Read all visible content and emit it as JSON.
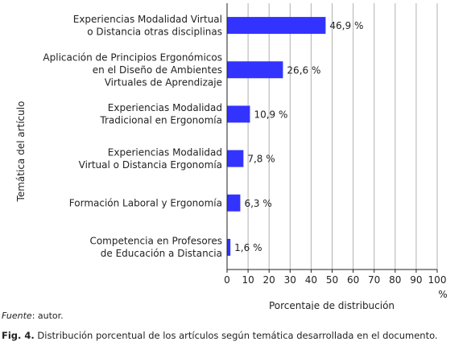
{
  "chart_data": {
    "type": "bar",
    "orientation": "horizontal",
    "categories": [
      [
        "Experiencias Modalidad Virtual",
        "o Distancia otras disciplinas"
      ],
      [
        "Aplicación de Principios Ergonómicos",
        "en el Diseño de Ambientes",
        "Virtuales de Aprendizaje"
      ],
      [
        "Experiencias Modalidad",
        "Tradicional en Ergonomía"
      ],
      [
        "Experiencias Modalidad",
        "Virtual o Distancia Ergonomía"
      ],
      [
        "Formación Laboral y Ergonomía"
      ],
      [
        "Competencia en Profesores",
        "de Educación a Distancia"
      ]
    ],
    "values": [
      46.9,
      26.6,
      10.9,
      7.8,
      6.3,
      1.6
    ],
    "data_labels": [
      "46,9 %",
      "26,6 %",
      "10,9 %",
      "7,8 %",
      "6,3 %",
      "1,6 %"
    ],
    "xlim": [
      0,
      100
    ],
    "xticks": [
      "0",
      "10",
      "20",
      "30",
      "40",
      "50",
      "60",
      "70",
      "80",
      "90",
      "100"
    ],
    "x_unit": "%",
    "xlabel": "Porcentaje de distribución",
    "ylabel": "Temática del artículo",
    "bar_color": "#3333ff",
    "grid": "vertical"
  },
  "source": {
    "label": "Fuente",
    "text": ": autor."
  },
  "caption": {
    "label": "Fig. 4.",
    "text": " Distribución porcentual de los artículos según temática desarrollada en el documento."
  }
}
